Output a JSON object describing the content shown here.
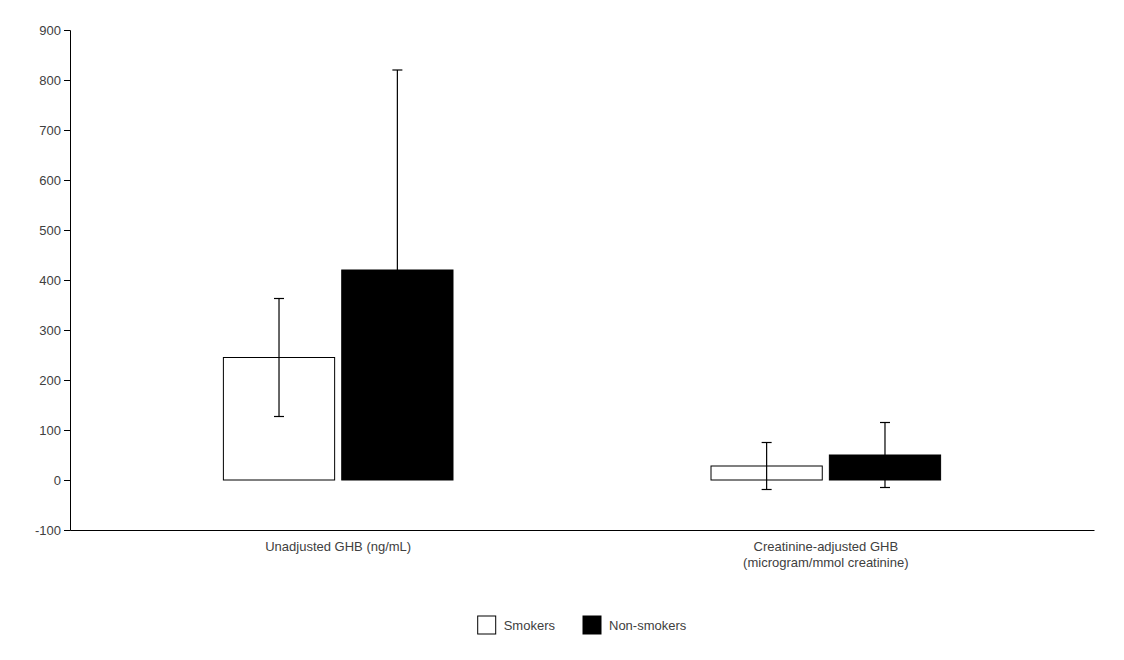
{
  "chart_data": {
    "type": "bar",
    "categories": [
      "Unadjusted GHB (ng/mL)",
      "Creatinine-adjusted GHB\n(microgram/mmol creatinine)"
    ],
    "series": [
      {
        "name": "Smokers",
        "color": "#ffffff",
        "values": [
          245,
          28
        ],
        "errors": [
          118,
          47
        ]
      },
      {
        "name": "Non-smokers",
        "color": "#000000",
        "values": [
          420,
          50
        ],
        "errors": [
          400,
          65
        ]
      }
    ],
    "ylim": [
      -100,
      900
    ],
    "yticks": [
      -100,
      0,
      100,
      200,
      300,
      400,
      500,
      600,
      700,
      800,
      900
    ],
    "grid": false,
    "legend": "bottom"
  }
}
